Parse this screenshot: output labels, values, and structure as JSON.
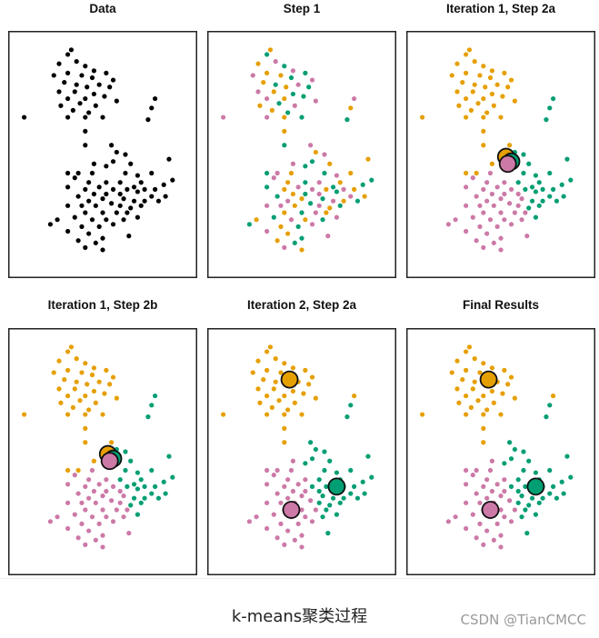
{
  "colors": {
    "orange": "#E69F00",
    "green": "#009E73",
    "pink": "#CC79A7",
    "black": "#000000"
  },
  "caption": "k-means聚类过程",
  "watermark": "CSDN @TianCMCC",
  "chart_data": {
    "type": "scatter",
    "xlim": [
      0,
      1
    ],
    "ylim": [
      0,
      1
    ],
    "points": [
      [
        0.32,
        0.95
      ],
      [
        0.3,
        0.93
      ],
      [
        0.35,
        0.9
      ],
      [
        0.25,
        0.89
      ],
      [
        0.4,
        0.88
      ],
      [
        0.45,
        0.86
      ],
      [
        0.3,
        0.85
      ],
      [
        0.52,
        0.85
      ],
      [
        0.22,
        0.84
      ],
      [
        0.38,
        0.84
      ],
      [
        0.44,
        0.83
      ],
      [
        0.56,
        0.82
      ],
      [
        0.28,
        0.81
      ],
      [
        0.35,
        0.8
      ],
      [
        0.48,
        0.8
      ],
      [
        0.41,
        0.79
      ],
      [
        0.54,
        0.79
      ],
      [
        0.25,
        0.77
      ],
      [
        0.34,
        0.77
      ],
      [
        0.45,
        0.76
      ],
      [
        0.3,
        0.74
      ],
      [
        0.4,
        0.74
      ],
      [
        0.51,
        0.75
      ],
      [
        0.58,
        0.73
      ],
      [
        0.26,
        0.71
      ],
      [
        0.37,
        0.72
      ],
      [
        0.46,
        0.71
      ],
      [
        0.33,
        0.69
      ],
      [
        0.42,
        0.68
      ],
      [
        0.3,
        0.66
      ],
      [
        0.4,
        0.66
      ],
      [
        0.5,
        0.66
      ],
      [
        0.8,
        0.74
      ],
      [
        0.78,
        0.7
      ],
      [
        0.76,
        0.65
      ],
      [
        0.05,
        0.66
      ],
      [
        0.4,
        0.6
      ],
      [
        0.4,
        0.54
      ],
      [
        0.55,
        0.54
      ],
      [
        0.58,
        0.51
      ],
      [
        0.56,
        0.47
      ],
      [
        0.63,
        0.5
      ],
      [
        0.66,
        0.46
      ],
      [
        0.52,
        0.45
      ],
      [
        0.45,
        0.46
      ],
      [
        0.88,
        0.48
      ],
      [
        0.3,
        0.42
      ],
      [
        0.36,
        0.42
      ],
      [
        0.44,
        0.42
      ],
      [
        0.63,
        0.42
      ],
      [
        0.7,
        0.41
      ],
      [
        0.78,
        0.42
      ],
      [
        0.9,
        0.39
      ],
      [
        0.34,
        0.4
      ],
      [
        0.42,
        0.38
      ],
      [
        0.52,
        0.38
      ],
      [
        0.6,
        0.38
      ],
      [
        0.72,
        0.38
      ],
      [
        0.85,
        0.37
      ],
      [
        0.48,
        0.36
      ],
      [
        0.4,
        0.35
      ],
      [
        0.3,
        0.36
      ],
      [
        0.56,
        0.35
      ],
      [
        0.64,
        0.35
      ],
      [
        0.68,
        0.36
      ],
      [
        0.74,
        0.35
      ],
      [
        0.8,
        0.35
      ],
      [
        0.52,
        0.33
      ],
      [
        0.6,
        0.33
      ],
      [
        0.45,
        0.33
      ],
      [
        0.7,
        0.34
      ],
      [
        0.78,
        0.32
      ],
      [
        0.86,
        0.32
      ],
      [
        0.36,
        0.32
      ],
      [
        0.42,
        0.3
      ],
      [
        0.5,
        0.31
      ],
      [
        0.62,
        0.31
      ],
      [
        0.68,
        0.3
      ],
      [
        0.74,
        0.3
      ],
      [
        0.82,
        0.3
      ],
      [
        0.38,
        0.28
      ],
      [
        0.46,
        0.28
      ],
      [
        0.55,
        0.29
      ],
      [
        0.6,
        0.28
      ],
      [
        0.66,
        0.27
      ],
      [
        0.72,
        0.28
      ],
      [
        0.3,
        0.28
      ],
      [
        0.4,
        0.25
      ],
      [
        0.5,
        0.25
      ],
      [
        0.58,
        0.25
      ],
      [
        0.64,
        0.25
      ],
      [
        0.34,
        0.23
      ],
      [
        0.44,
        0.22
      ],
      [
        0.52,
        0.22
      ],
      [
        0.62,
        0.22
      ],
      [
        0.7,
        0.23
      ],
      [
        0.38,
        0.19
      ],
      [
        0.48,
        0.19
      ],
      [
        0.56,
        0.2
      ],
      [
        0.24,
        0.22
      ],
      [
        0.2,
        0.2
      ],
      [
        0.3,
        0.17
      ],
      [
        0.42,
        0.16
      ],
      [
        0.5,
        0.14
      ],
      [
        0.65,
        0.15
      ],
      [
        0.36,
        0.13
      ],
      [
        0.46,
        0.12
      ],
      [
        0.4,
        0.1
      ],
      [
        0.5,
        0.09
      ]
    ],
    "panels": [
      {
        "title": "Data",
        "mode": "data",
        "centers": []
      },
      {
        "title": "Step 1",
        "mode": "random",
        "centers": []
      },
      {
        "title": "Iteration 1, Step 2a",
        "mode": "nearest",
        "centers": [
          {
            "c": "orange",
            "x": 0.53,
            "y": 0.49
          },
          {
            "c": "green",
            "x": 0.56,
            "y": 0.47
          },
          {
            "c": "pink",
            "x": 0.54,
            "y": 0.46
          }
        ]
      },
      {
        "title": "Iteration 1, Step 2b",
        "mode": "nearest",
        "centers": [
          {
            "c": "orange",
            "x": 0.53,
            "y": 0.49
          },
          {
            "c": "green",
            "x": 0.56,
            "y": 0.47
          },
          {
            "c": "pink",
            "x": 0.54,
            "y": 0.46
          }
        ]
      },
      {
        "title": "Iteration 2, Step 2a",
        "mode": "nearest",
        "centers": [
          {
            "c": "orange",
            "x": 0.43,
            "y": 0.81
          },
          {
            "c": "green",
            "x": 0.7,
            "y": 0.35
          },
          {
            "c": "pink",
            "x": 0.44,
            "y": 0.25
          }
        ]
      },
      {
        "title": "Final Results",
        "mode": "nearest",
        "centers": [
          {
            "c": "orange",
            "x": 0.43,
            "y": 0.81
          },
          {
            "c": "green",
            "x": 0.7,
            "y": 0.35
          },
          {
            "c": "pink",
            "x": 0.44,
            "y": 0.25
          }
        ]
      }
    ]
  }
}
